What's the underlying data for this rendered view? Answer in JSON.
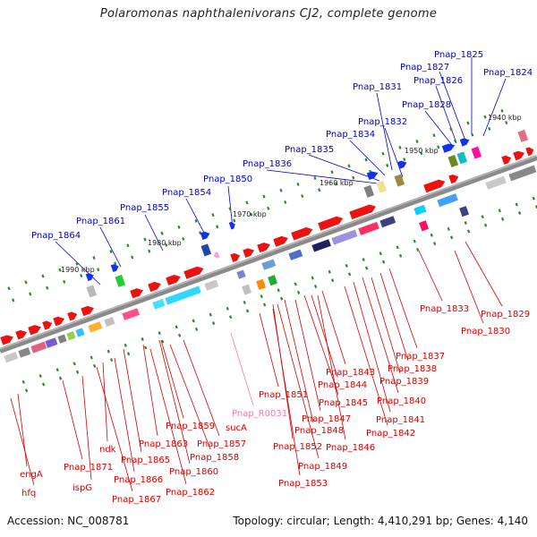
{
  "title": "Polaromonas naphthalenivorans CJ2, complete genome",
  "footer": {
    "accession": "Accession: NC_008781",
    "summary": "Topology: circular; Length: 4,410,291 bp; Genes: 4,140"
  },
  "scale_ticks": [
    "1940 kbp",
    "1950 kbp",
    "1960 kbp",
    "1970 kbp",
    "1980 kbp",
    "1990 kbp"
  ],
  "colors": {
    "forward_label": "#0000c8",
    "reverse_label": "#d40000",
    "rna_label": "#f07ab0",
    "backbone": "#8a8a8a",
    "tick": "#2a8a2a"
  },
  "labels_top": [
    "Pnap_1825",
    "Pnap_1827",
    "Pnap_1824",
    "Pnap_1826",
    "Pnap_1831",
    "Pnap_1828",
    "Pnap_1832",
    "Pnap_1834",
    "Pnap_1835",
    "Pnap_1836",
    "Pnap_1850",
    "Pnap_1854",
    "Pnap_1855",
    "Pnap_1861",
    "Pnap_1864"
  ],
  "labels_bottom": [
    "Pnap_1833",
    "Pnap_1829",
    "Pnap_1830",
    "Pnap_1837",
    "Pnap_1838",
    "Pnap_1843",
    "Pnap_1839",
    "Pnap_1844",
    "Pnap_1840",
    "Pnap_1851",
    "Pnap_1845",
    "Pnap_R0031",
    "Pnap_1841",
    "Pnap_1847",
    "Pnap_1848",
    "sucA",
    "Pnap_1842",
    "Pnap_1846",
    "Pnap_1859",
    "Pnap_1857",
    "Pnap_1852",
    "Pnap_1863",
    "Pnap_1858",
    "ndk",
    "Pnap_1849",
    "Pnap_1865",
    "Pnap_1860",
    "Pnap_1871",
    "engA",
    "Pnap_1866",
    "Pnap_1853",
    "ispG",
    "Pnap_1862",
    "Pnap_1867",
    "hfq"
  ]
}
